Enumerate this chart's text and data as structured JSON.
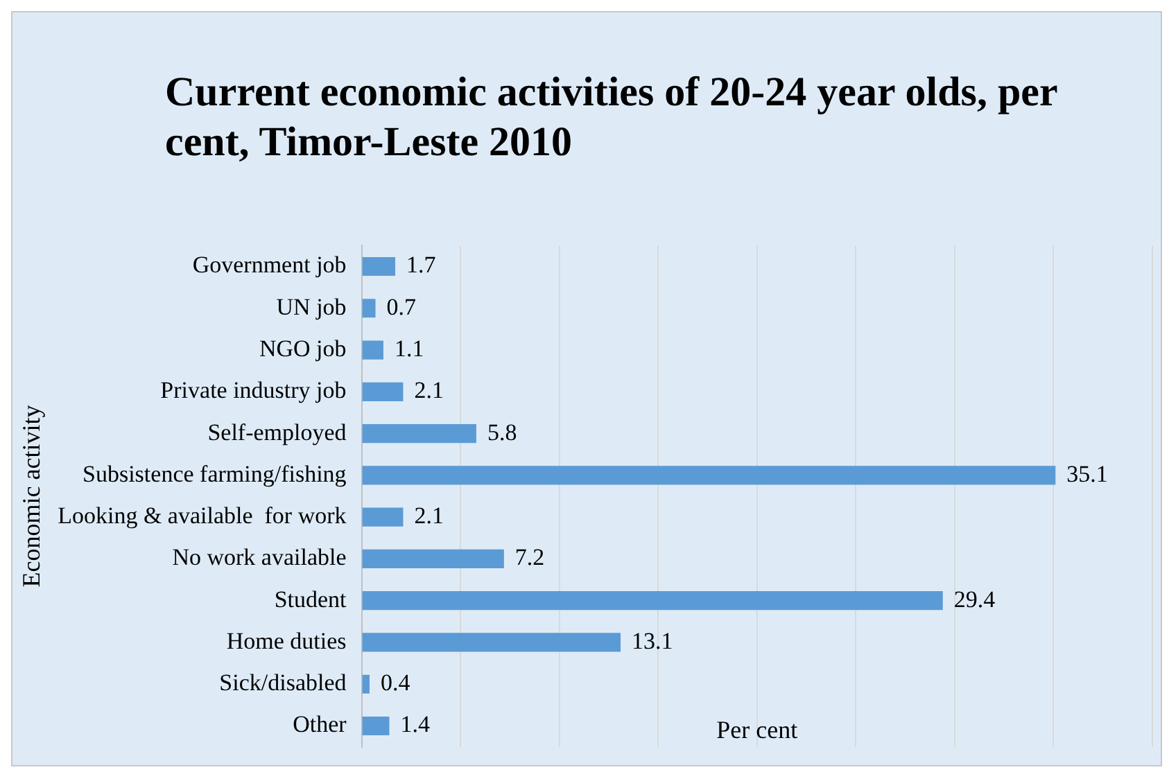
{
  "chart_data": {
    "type": "bar",
    "orientation": "horizontal",
    "title": "Current economic activities of 20-24 year olds, per cent, Timor-Leste 2010",
    "xlabel": "Per cent",
    "ylabel": "Economic activity",
    "categories": [
      "Government job",
      "UN job",
      "NGO job",
      "Private industry job",
      "Self-employed",
      "Subsistence farming/fishing",
      "Looking & available  for work",
      "No work available",
      "Student",
      "Home duties",
      "Sick/disabled",
      "Other"
    ],
    "values": [
      1.7,
      0.7,
      1.1,
      2.1,
      5.8,
      35.1,
      2.1,
      7.2,
      29.4,
      13.1,
      0.4,
      1.4
    ],
    "color": "#5b9bd5",
    "xlim": [
      0,
      40
    ],
    "xticks": [
      {
        "value": 0,
        "label": null
      },
      {
        "value": 5,
        "label": null
      },
      {
        "value": 10,
        "label": null
      },
      {
        "value": 15,
        "label": null
      },
      {
        "value": 20,
        "label": null
      },
      {
        "value": 25,
        "label": null
      },
      {
        "value": 30,
        "label": null
      },
      {
        "value": 35,
        "label": null
      },
      {
        "value": 40,
        "label": null
      }
    ],
    "tick_labels": "y",
    "grid": "x",
    "data_labels": true,
    "legend": false
  }
}
